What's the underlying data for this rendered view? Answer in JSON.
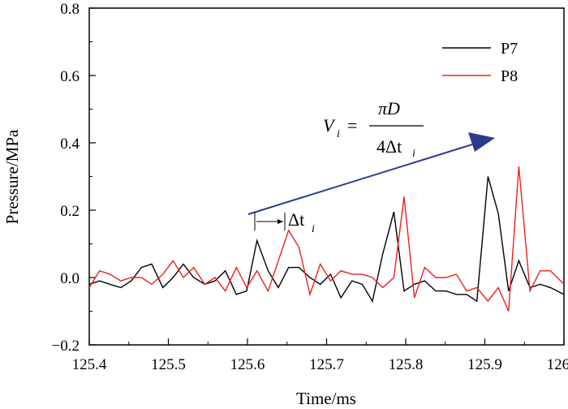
{
  "chart_data": {
    "type": "line",
    "xlabel": "Time/ms",
    "ylabel": "Pressure/MPa",
    "xlim": [
      125.4,
      126.0
    ],
    "ylim": [
      -0.2,
      0.8
    ],
    "x_ticks": [
      "125.4",
      "125.5",
      "125.6",
      "125.7",
      "125.8",
      "125.9",
      "126.0"
    ],
    "y_ticks": [
      "−0.2",
      "0.0",
      "0.2",
      "0.4",
      "0.6",
      "0.8"
    ],
    "legend_position": "top-right",
    "grid": false,
    "series": [
      {
        "name": "P7",
        "color": "#000000",
        "x": [
          125.4,
          125.413,
          125.426,
          125.44,
          125.453,
          125.466,
          125.479,
          125.493,
          125.506,
          125.519,
          125.532,
          125.546,
          125.559,
          125.572,
          125.586,
          125.599,
          125.612,
          125.626,
          125.639,
          125.652,
          125.665,
          125.679,
          125.692,
          125.705,
          125.718,
          125.732,
          125.745,
          125.758,
          125.771,
          125.785,
          125.798,
          125.811,
          125.824,
          125.838,
          125.851,
          125.864,
          125.877,
          125.89,
          125.904,
          125.917,
          125.93,
          125.943,
          125.957,
          125.97,
          125.983,
          126.0
        ],
        "y": [
          -0.02,
          -0.01,
          -0.02,
          -0.03,
          -0.01,
          0.03,
          0.04,
          -0.03,
          0.0,
          0.04,
          0.0,
          -0.02,
          -0.01,
          0.02,
          -0.05,
          -0.04,
          0.11,
          0.02,
          -0.03,
          0.03,
          0.03,
          0.0,
          -0.02,
          0.01,
          -0.06,
          -0.01,
          -0.02,
          -0.07,
          0.07,
          0.195,
          -0.04,
          -0.02,
          -0.01,
          -0.04,
          -0.04,
          -0.05,
          -0.05,
          -0.07,
          0.3,
          0.19,
          -0.04,
          0.05,
          -0.03,
          -0.02,
          -0.03,
          -0.05
        ]
      },
      {
        "name": "P8",
        "color": "#e8231f",
        "x": [
          125.4,
          125.413,
          125.426,
          125.44,
          125.453,
          125.466,
          125.479,
          125.493,
          125.506,
          125.519,
          125.532,
          125.546,
          125.559,
          125.572,
          125.586,
          125.599,
          125.612,
          125.626,
          125.639,
          125.652,
          125.665,
          125.679,
          125.692,
          125.705,
          125.718,
          125.732,
          125.745,
          125.758,
          125.771,
          125.785,
          125.798,
          125.811,
          125.824,
          125.838,
          125.851,
          125.864,
          125.877,
          125.89,
          125.904,
          125.917,
          125.93,
          125.943,
          125.957,
          125.97,
          125.983,
          126.0
        ],
        "y": [
          -0.03,
          0.02,
          0.01,
          -0.01,
          0.0,
          0.0,
          -0.02,
          0.01,
          0.05,
          0.0,
          0.03,
          -0.02,
          0.0,
          -0.04,
          0.03,
          -0.03,
          0.02,
          -0.04,
          0.05,
          0.14,
          0.09,
          -0.05,
          0.04,
          -0.01,
          0.02,
          0.01,
          0.01,
          0.0,
          -0.03,
          0.0,
          0.24,
          -0.06,
          0.03,
          0.0,
          0.0,
          0.01,
          -0.04,
          -0.03,
          -0.07,
          -0.03,
          -0.1,
          0.33,
          -0.04,
          0.02,
          0.02,
          -0.02
        ]
      }
    ],
    "annotations": {
      "formula_lhs": "V",
      "formula_lhs_sub": "i",
      "formula_eq": "=",
      "formula_num": "πD",
      "formula_den": "4Δt",
      "formula_den_sub": "i",
      "delta_label": "Δt",
      "delta_sub": "i",
      "arrow_color": "#2b3a8e"
    }
  }
}
